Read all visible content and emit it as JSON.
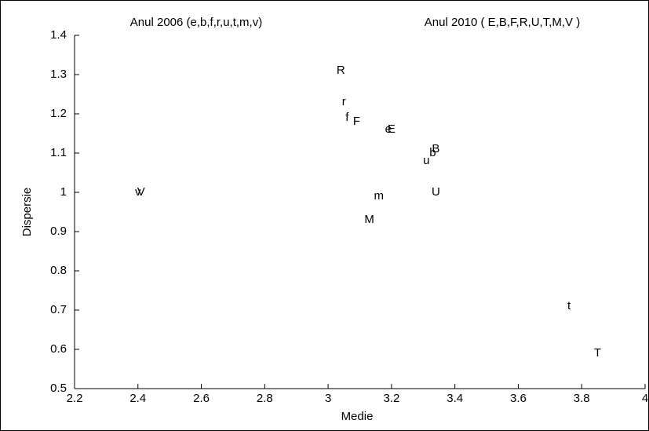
{
  "chart_data": {
    "type": "scatter",
    "annotations": [
      "Anul 2006 (e,b,f,r,u,t,m,v)",
      "Anul 2010 ( E,B,F,R,U,T,M,V )"
    ],
    "x_label": "Medie",
    "y_label": "Dispersie",
    "series": [
      {
        "color": "#000000",
        "labels": [
          "e",
          "b",
          "f",
          "r",
          "u",
          "t",
          "m",
          "v"
        ],
        "x": [
          3.19,
          3.33,
          3.06,
          3.05,
          3.31,
          3.76,
          3.16,
          2.4
        ],
        "values": [
          1.16,
          1.1,
          1.19,
          1.23,
          1.08,
          0.71,
          0.99,
          1.0
        ]
      },
      {
        "color": "#000000",
        "labels": [
          "E",
          "B",
          "F",
          "R",
          "U",
          "T",
          "M",
          "V"
        ],
        "x": [
          3.2,
          3.34,
          3.09,
          3.04,
          3.34,
          3.85,
          3.13,
          2.41
        ],
        "values": [
          1.16,
          1.11,
          1.18,
          1.31,
          1.0,
          0.59,
          0.93,
          1.0
        ]
      }
    ],
    "xlim": [
      2.2,
      4
    ],
    "xticks": [
      2.2,
      2.4,
      2.6,
      2.8,
      3,
      3.2,
      3.4,
      3.6,
      3.8,
      4
    ],
    "ylim": [
      0.5,
      1.4
    ],
    "yticks": [
      0.5,
      0.6,
      0.7,
      0.8,
      0.9,
      1,
      1.1,
      1.2,
      1.3,
      1.4
    ]
  }
}
